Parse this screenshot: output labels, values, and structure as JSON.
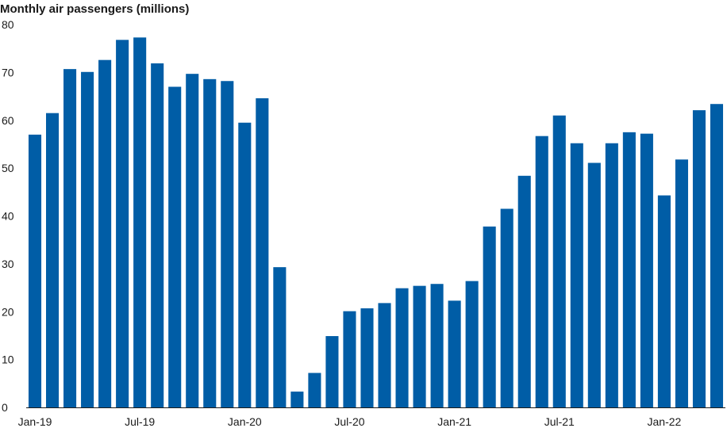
{
  "chart_data": {
    "type": "bar",
    "title": "Monthly air passengers (millions)",
    "xlabel": "",
    "ylabel": "",
    "ylim": [
      0,
      80
    ],
    "yticks": [
      0,
      10,
      20,
      30,
      40,
      50,
      60,
      70,
      80
    ],
    "grid": false,
    "bar_color": "#005DA6",
    "categories": [
      "Jan-19",
      "Feb-19",
      "Mar-19",
      "Apr-19",
      "May-19",
      "Jun-19",
      "Jul-19",
      "Aug-19",
      "Sep-19",
      "Oct-19",
      "Nov-19",
      "Dec-19",
      "Jan-20",
      "Feb-20",
      "Mar-20",
      "Apr-20",
      "May-20",
      "Jun-20",
      "Jul-20",
      "Aug-20",
      "Sep-20",
      "Oct-20",
      "Nov-20",
      "Dec-20",
      "Jan-21",
      "Feb-21",
      "Mar-21",
      "Apr-21",
      "May-21",
      "Jun-21",
      "Jul-21",
      "Aug-21",
      "Sep-21",
      "Oct-21",
      "Nov-21",
      "Dec-21",
      "Jan-22",
      "Feb-22",
      "Mar-22",
      "Apr-22"
    ],
    "x_tick_labels": [
      "Jan-19",
      "Jul-19",
      "Jan-20",
      "Jul-20",
      "Jan-21",
      "Jul-21",
      "Jan-22"
    ],
    "values": [
      57.0,
      61.5,
      70.7,
      70.1,
      72.6,
      76.8,
      77.3,
      71.9,
      67.0,
      69.7,
      68.6,
      68.2,
      59.5,
      64.6,
      29.3,
      3.3,
      7.2,
      14.9,
      20.1,
      20.7,
      21.8,
      24.9,
      25.4,
      25.8,
      22.3,
      26.4,
      37.8,
      41.5,
      48.4,
      56.7,
      61.0,
      55.2,
      51.1,
      55.2,
      57.5,
      57.2,
      44.3,
      51.8,
      62.1,
      63.4
    ]
  }
}
